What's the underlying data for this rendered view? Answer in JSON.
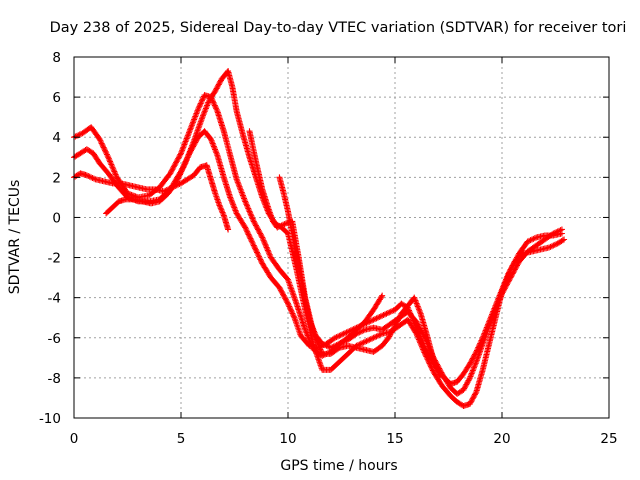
{
  "chart_data": {
    "type": "scatter",
    "title": "Day 238 of 2025, Sidereal Day-to-day VTEC variation (SDTVAR) for receiver tori",
    "xlabel": "GPS time / hours",
    "ylabel": "SDTVAR / TECUs",
    "xlim": [
      0,
      25
    ],
    "ylim": [
      -10,
      8
    ],
    "x_ticks": [
      0,
      5,
      10,
      15,
      20,
      25
    ],
    "y_ticks": [
      -10,
      -8,
      -6,
      -4,
      -2,
      0,
      2,
      4,
      6,
      8
    ],
    "grid": true,
    "legend": "none",
    "marker": "+",
    "series_color": "#ff0000",
    "series": [
      {
        "x": [
          0.0,
          0.3,
          0.6,
          0.8,
          1.0,
          1.4,
          1.8,
          2.2,
          2.6,
          3.0,
          3.4,
          3.8,
          4.2,
          4.6,
          5.0,
          5.3,
          5.6,
          5.9,
          6.2,
          6.4,
          6.6,
          6.8,
          7.0,
          7.2
        ],
        "y": [
          2.0,
          2.2,
          2.1,
          2.0,
          1.9,
          1.8,
          1.7,
          1.7,
          1.6,
          1.5,
          1.4,
          1.4,
          1.3,
          1.5,
          1.7,
          1.9,
          2.1,
          2.5,
          2.6,
          1.9,
          1.2,
          0.6,
          0.1,
          -0.6
        ]
      },
      {
        "x": [
          0.0,
          0.3,
          0.6,
          0.9,
          1.2,
          1.6,
          2.0,
          2.5,
          3.0,
          3.5,
          4.0,
          4.5,
          5.0,
          5.4,
          5.8,
          6.1,
          6.4,
          6.7,
          7.0,
          7.3,
          7.6,
          8.0,
          8.4,
          8.8,
          9.2,
          9.6,
          10.0,
          10.3,
          10.6,
          11.0,
          11.4,
          11.8,
          12.2,
          12.6,
          13.0,
          13.4,
          13.8,
          14.2,
          14.6,
          15.0,
          15.3,
          15.6,
          16.0,
          16.4,
          16.8,
          17.2,
          17.6,
          17.9,
          18.2,
          18.5,
          18.8,
          19.1,
          19.4,
          19.7,
          20.0,
          20.3,
          20.6,
          21.0,
          21.4,
          21.8,
          22.2,
          22.6,
          22.9
        ],
        "y": [
          3.0,
          3.2,
          3.4,
          3.2,
          2.7,
          2.2,
          1.6,
          1.0,
          0.8,
          0.8,
          0.9,
          1.4,
          2.3,
          3.2,
          4.0,
          4.3,
          3.9,
          3.1,
          2.0,
          1.0,
          0.2,
          -0.5,
          -1.4,
          -2.3,
          -3.0,
          -3.5,
          -4.3,
          -5.0,
          -5.9,
          -6.4,
          -6.5,
          -6.3,
          -6.0,
          -5.8,
          -5.6,
          -5.4,
          -5.2,
          -5.0,
          -4.8,
          -4.6,
          -4.3,
          -4.5,
          -5.5,
          -6.5,
          -7.3,
          -7.9,
          -8.3,
          -8.2,
          -7.8,
          -7.3,
          -6.7,
          -6.0,
          -5.2,
          -4.4,
          -3.6,
          -2.8,
          -2.2,
          -1.8,
          -1.7,
          -1.6,
          -1.5,
          -1.3,
          -1.1
        ]
      },
      {
        "x": [
          0.0,
          0.4,
          0.8,
          1.2,
          1.6,
          2.0,
          2.5,
          3.0,
          3.5,
          4.0,
          4.5,
          5.0,
          5.4,
          5.8,
          6.1,
          6.4,
          6.7,
          7.0,
          7.3,
          7.6,
          8.0,
          8.4,
          8.8,
          9.2,
          9.6,
          10.0,
          10.4,
          10.8,
          11.2,
          11.6,
          12.0,
          12.4,
          12.8,
          13.2,
          13.6,
          14.0,
          14.4,
          14.8,
          15.2,
          15.6,
          16.0,
          16.4,
          16.8,
          17.2,
          17.6,
          17.9,
          18.2,
          18.5,
          18.8,
          19.1,
          19.4,
          19.7,
          20.0,
          20.4,
          20.8,
          21.2,
          21.6,
          22.0,
          22.4,
          22.8
        ],
        "y": [
          4.0,
          4.2,
          4.5,
          3.9,
          3.0,
          2.0,
          1.2,
          1.0,
          1.1,
          1.5,
          2.2,
          3.2,
          4.3,
          5.4,
          6.1,
          6.0,
          5.3,
          4.3,
          3.1,
          1.9,
          0.8,
          -0.2,
          -1.0,
          -2.0,
          -2.6,
          -3.1,
          -4.3,
          -5.6,
          -6.6,
          -6.9,
          -6.7,
          -6.3,
          -6.1,
          -5.8,
          -5.6,
          -5.5,
          -5.6,
          -5.3,
          -5.0,
          -4.7,
          -5.2,
          -6.0,
          -7.0,
          -7.8,
          -8.5,
          -8.8,
          -8.6,
          -8.0,
          -7.2,
          -6.3,
          -5.4,
          -4.6,
          -3.8,
          -3.0,
          -2.2,
          -1.7,
          -1.4,
          -1.1,
          -0.8,
          -0.6
        ]
      },
      {
        "x": [
          1.5,
          1.8,
          2.1,
          2.4,
          2.8,
          3.2,
          3.6,
          4.0,
          4.4,
          4.8,
          5.2,
          5.6,
          6.0,
          6.3,
          6.6,
          6.9,
          7.2,
          7.4,
          7.6,
          7.9,
          8.2,
          8.5,
          8.8,
          9.1,
          9.4,
          9.7,
          10.0,
          10.4,
          10.8,
          11.2,
          11.6,
          12.0,
          12.4,
          12.8,
          13.2,
          13.6,
          14.0,
          14.4,
          14.8,
          15.2,
          15.6,
          16.0,
          16.4,
          16.8,
          17.2,
          17.6,
          17.9,
          18.2,
          18.5,
          18.8,
          19.1,
          19.4,
          19.7,
          20.0,
          20.4,
          20.8,
          21.2,
          21.6,
          22.0,
          22.4,
          22.8
        ],
        "y": [
          0.2,
          0.5,
          0.8,
          0.9,
          0.9,
          0.8,
          0.7,
          0.8,
          1.2,
          1.8,
          2.7,
          3.8,
          5.0,
          5.8,
          6.3,
          6.9,
          7.3,
          6.5,
          5.3,
          4.1,
          3.0,
          2.0,
          1.0,
          0.2,
          -0.3,
          -0.5,
          -0.8,
          -2.6,
          -4.6,
          -6.4,
          -7.6,
          -7.6,
          -7.2,
          -6.8,
          -6.4,
          -6.2,
          -6.0,
          -5.8,
          -5.7,
          -5.4,
          -5.1,
          -5.8,
          -6.8,
          -7.7,
          -8.4,
          -8.9,
          -9.2,
          -9.4,
          -9.3,
          -8.7,
          -7.6,
          -6.3,
          -5.0,
          -3.7,
          -2.6,
          -1.8,
          -1.2,
          -1.0,
          -0.9,
          -0.9,
          -0.8
        ]
      },
      {
        "x": [
          8.2,
          8.5,
          8.8,
          9.1,
          9.3,
          9.5,
          9.7,
          9.9,
          10.2,
          10.5,
          10.8,
          11.2,
          11.6,
          12.0,
          12.4,
          12.8,
          13.2,
          13.6,
          14.0,
          14.4,
          14.7,
          15.0,
          15.3,
          15.6,
          15.9,
          16.2,
          16.5,
          16.8,
          17.1
        ],
        "y": [
          4.3,
          2.8,
          1.4,
          0.4,
          -0.2,
          -0.5,
          -0.4,
          -0.3,
          -0.2,
          -2.0,
          -4.0,
          -5.8,
          -6.8,
          -6.8,
          -6.5,
          -6.4,
          -6.5,
          -6.6,
          -6.7,
          -6.4,
          -6.0,
          -5.4,
          -4.8,
          -4.4,
          -4.0,
          -4.8,
          -5.9,
          -7.1,
          -7.9
        ]
      },
      {
        "x": [
          9.6,
          9.8,
          10.0,
          10.2,
          10.4,
          10.6,
          10.8,
          11.0,
          11.3,
          11.6,
          12.0,
          12.4,
          12.8,
          13.2,
          13.6,
          14.0,
          14.4
        ],
        "y": [
          2.0,
          1.2,
          0.3,
          -0.8,
          -1.9,
          -3.0,
          -4.1,
          -5.1,
          -5.9,
          -6.3,
          -6.5,
          -6.3,
          -6.0,
          -5.6,
          -5.2,
          -4.6,
          -3.9
        ]
      }
    ]
  }
}
